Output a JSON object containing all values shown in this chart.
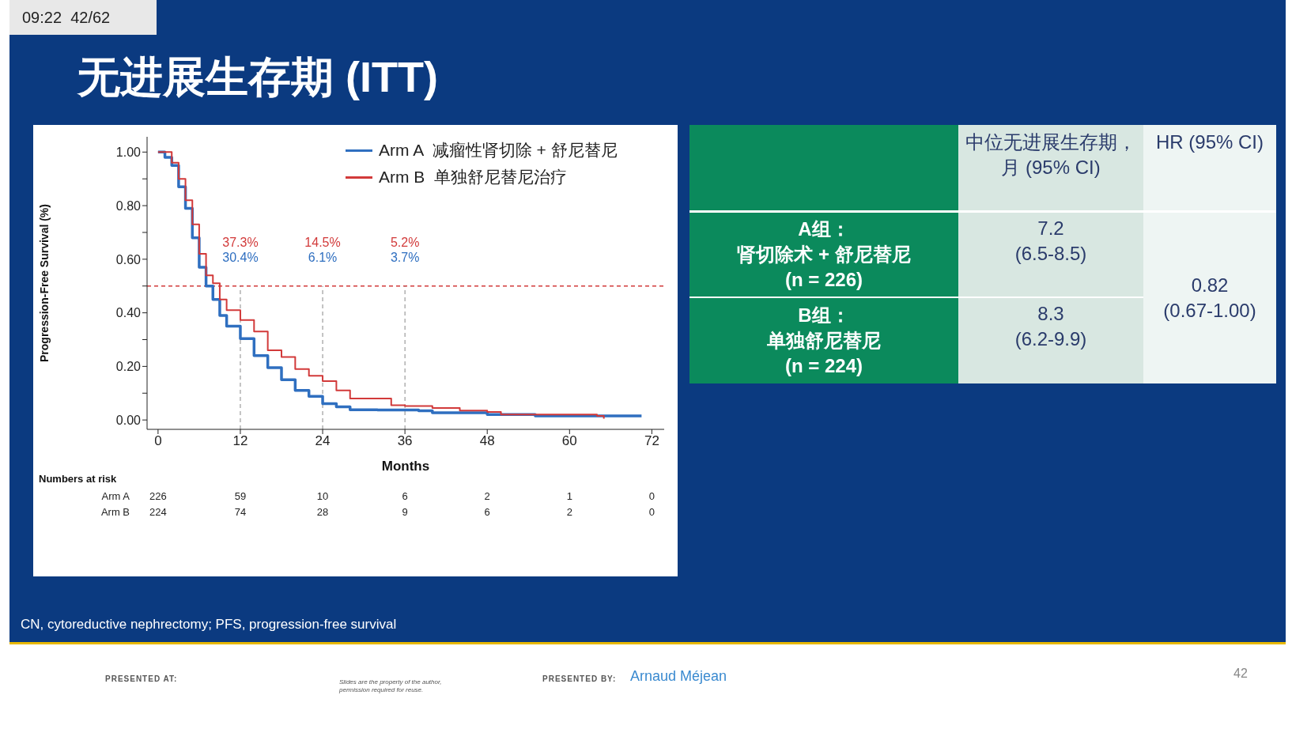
{
  "chart_data": [
    {
      "type": "step",
      "title": "无进展生存期 (ITT)",
      "xlabel": "Months",
      "ylabel": "Progression-Free Survival (%)",
      "xlim": [
        -1.6,
        73.8
      ],
      "xticks": [
        0,
        12,
        24,
        36,
        48,
        60,
        72
      ],
      "ylim": [
        -0.035,
        1.057
      ],
      "yticks": [
        {
          "value": 0,
          "label": "0.00"
        },
        {
          "value": 0.1,
          "label": null
        },
        {
          "value": 0.2,
          "label": "0.20"
        },
        {
          "value": 0.3,
          "label": null
        },
        {
          "value": 0.4,
          "label": "0.40"
        },
        {
          "value": 0.5,
          "label": null
        },
        {
          "value": 0.6,
          "label": "0.60"
        },
        {
          "value": 0.7,
          "label": null
        },
        {
          "value": 0.8,
          "label": "0.80"
        },
        {
          "value": 0.9,
          "label": null
        },
        {
          "value": 1,
          "label": "1.00"
        }
      ],
      "legend": "top right",
      "series": [
        {
          "name": "Arm A  减瘤性肾切除 + 舒尼替尼",
          "color": "#2f6fc0",
          "x": [
            0,
            1,
            2,
            3,
            4,
            5,
            6,
            7,
            8,
            9,
            10,
            12,
            14,
            16,
            18,
            20,
            22,
            24,
            26,
            28,
            32,
            36,
            38,
            40,
            48,
            55,
            60,
            70.5
          ],
          "values": [
            1,
            0.98,
            0.95,
            0.87,
            0.79,
            0.68,
            0.57,
            0.5,
            0.45,
            0.39,
            0.35,
            0.304,
            0.24,
            0.195,
            0.15,
            0.11,
            0.088,
            0.061,
            0.049,
            0.038,
            0.037,
            0.037,
            0.034,
            0.027,
            0.02,
            0.015,
            0.015,
            0.015
          ]
        },
        {
          "name": "Arm B  单独舒尼替尼治疗",
          "color": "#d23a3a",
          "x": [
            0,
            2,
            3,
            4,
            5,
            6,
            7,
            8,
            9,
            10,
            12,
            14,
            16,
            18,
            20,
            22,
            24,
            26,
            28,
            32,
            34,
            36,
            40,
            44,
            48,
            50,
            60,
            64,
            65
          ],
          "values": [
            1,
            0.96,
            0.9,
            0.82,
            0.73,
            0.62,
            0.54,
            0.51,
            0.45,
            0.41,
            0.373,
            0.33,
            0.26,
            0.235,
            0.19,
            0.165,
            0.145,
            0.11,
            0.08,
            0.08,
            0.055,
            0.052,
            0.045,
            0.035,
            0.03,
            0.02,
            0.02,
            0.015,
            0.005
          ]
        }
      ],
      "ref_lines": [
        {
          "axis": "y",
          "value": 0.5,
          "color": "#d23a3a",
          "line_style": "dashed"
        },
        {
          "axis": "x",
          "value": 12,
          "color": "#888888",
          "line_style": "dashed"
        },
        {
          "axis": "x",
          "value": 24,
          "color": "#888888",
          "line_style": "dashed"
        },
        {
          "axis": "x",
          "value": 36,
          "color": "#888888",
          "line_style": "dashed"
        }
      ],
      "annotations": [
        "37.3%",
        "30.4%",
        "14.5%",
        "6.1%",
        "5.2%",
        "3.7%",
        "09:22  42/62",
        "CN, cytoreductive nephrectomy; PFS, progression-free survival",
        "PRESENTED AT:",
        "Slides are the property of the author, permission required for reuse.",
        "PRESENTED BY:",
        "Arnaud Méjean",
        "42",
        "Numbers at risk",
        "Arm A",
        "226",
        "59",
        "10",
        "6",
        "2",
        "1",
        "0",
        "Arm B",
        "224",
        "74",
        "28",
        "9",
        "6",
        "2",
        "0"
      ]
    },
    {
      "type": "other",
      "annotations": [
        "中位无进展生存期，月 (95% CI)",
        "HR (95% CI)",
        "A组：",
        "肾切除术 + 舒尼替尼",
        "(n = 226)",
        "7.2\n(6.5-8.5)",
        "0.82\n(0.67-1.00)",
        "B组：",
        "单独舒尼替尼",
        "(n = 224)",
        "8.3\n(6.2-9.9)"
      ]
    }
  ]
}
